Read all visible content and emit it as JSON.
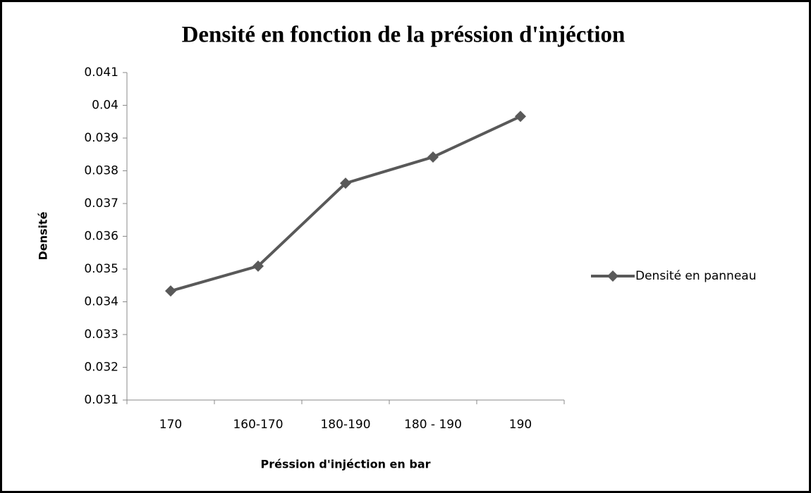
{
  "chart_data": {
    "type": "line",
    "title": "Densité en fonction de la préssion d'injéction",
    "x_label": "Préssion d'injéction en bar",
    "y_label": "Densité",
    "categories": [
      "170",
      "160-170",
      "180-190",
      "180 - 190",
      "190"
    ],
    "series": [
      {
        "name": "Densité en panneau",
        "color": "#595959",
        "values": [
          0.03433,
          0.03509,
          0.03762,
          0.03842,
          0.03966
        ]
      }
    ],
    "ylim": [
      0.031,
      0.041
    ],
    "yticks": [
      0.031,
      0.032,
      0.033,
      0.034,
      0.035,
      0.036,
      0.037,
      0.038,
      0.039,
      0.04,
      0.041
    ],
    "legend": "right"
  }
}
